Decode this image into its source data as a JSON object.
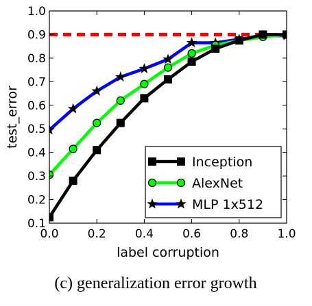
{
  "chart_data": {
    "type": "line",
    "title": "",
    "caption": "(c) generalization error growth",
    "xlabel": "label corruption",
    "ylabel": "test_error",
    "xlim": [
      0.0,
      1.0
    ],
    "ylim": [
      0.1,
      1.0
    ],
    "xticks": [
      "0.0",
      "0.2",
      "0.4",
      "0.6",
      "0.8",
      "1.0"
    ],
    "yticks": [
      "0.1",
      "0.2",
      "0.3",
      "0.4",
      "0.5",
      "0.6",
      "0.7",
      "0.8",
      "0.9",
      "1.0"
    ],
    "grid": false,
    "legend_position": "lower-right",
    "series": [
      {
        "name": "Inception",
        "color": "#000000",
        "marker": "square",
        "x": [
          0.0,
          0.1,
          0.2,
          0.3,
          0.4,
          0.5,
          0.6,
          0.7,
          0.8,
          0.9,
          1.0
        ],
        "values": [
          0.125,
          0.28,
          0.41,
          0.525,
          0.63,
          0.71,
          0.785,
          0.84,
          0.875,
          0.9,
          0.9
        ]
      },
      {
        "name": "AlexNet",
        "color": "#00ff00",
        "marker": "circle",
        "x": [
          0.0,
          0.1,
          0.2,
          0.3,
          0.4,
          0.5,
          0.6,
          0.7,
          0.8,
          0.9,
          1.0
        ],
        "values": [
          0.305,
          0.415,
          0.525,
          0.62,
          0.69,
          0.76,
          0.82,
          0.855,
          0.875,
          0.89,
          0.9
        ]
      },
      {
        "name": "MLP 1x512",
        "color": "#0000ff",
        "marker": "star",
        "x": [
          0.0,
          0.1,
          0.2,
          0.3,
          0.4,
          0.5,
          0.6,
          0.7,
          0.8,
          0.9,
          1.0
        ],
        "values": [
          0.495,
          0.585,
          0.66,
          0.72,
          0.755,
          0.795,
          0.865,
          0.865,
          0.88,
          0.895,
          0.895
        ]
      }
    ],
    "reference_line": {
      "y": 0.9,
      "color": "#ff0000",
      "style": "dashed"
    }
  }
}
